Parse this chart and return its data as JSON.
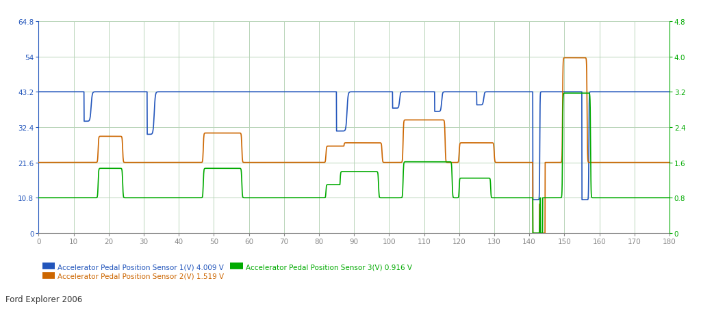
{
  "xlim": [
    0,
    180
  ],
  "ylim_left": [
    0,
    64.8
  ],
  "ylim_right": [
    0,
    4.8
  ],
  "yticks_left": [
    0,
    10.8,
    21.6,
    32.4,
    43.2,
    54,
    64.8
  ],
  "yticks_right": [
    0,
    0.8,
    1.6,
    2.4,
    3.2,
    4.0,
    4.8
  ],
  "xticks": [
    0,
    10,
    20,
    30,
    40,
    50,
    60,
    70,
    80,
    90,
    100,
    110,
    120,
    130,
    140,
    150,
    160,
    170,
    180
  ],
  "background_color": "#ffffff",
  "grid_color": "#b8d4b8",
  "sensor1_color": "#2255bb",
  "sensor2_color": "#cc6600",
  "sensor3_color": "#00aa00",
  "sensor1_label": "Accelerator Pedal Position Sensor 1(V) 4.009 V",
  "sensor2_label": "Accelerator Pedal Position Sensor 2(V) 1.519 V",
  "sensor3_label": "Accelerator Pedal Position Sensor 3(V) 0.916 V",
  "footer_text": "Ford Explorer 2006",
  "footer_bg": "#c8c8c8",
  "left_axis_color": "#2255bb",
  "right_axis_color": "#00aa00",
  "bottom_axis_color": "#888888",
  "line_width": 1.2
}
